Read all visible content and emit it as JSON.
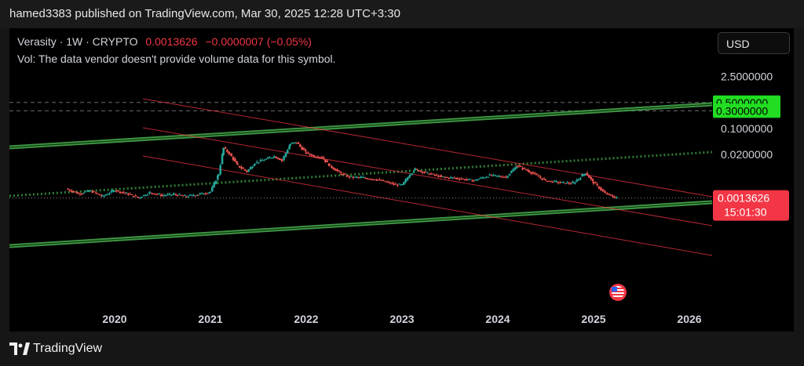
{
  "header": {
    "published": "hamed3383 published on TradingView.com, Mar 30, 2025 12:28 UTC+3:30"
  },
  "legend": {
    "symbol": "Verasity · 1W · CRYPTO",
    "price": "0.0013626",
    "change": "−0.0000007 (−0.05%)",
    "volume_note": "Vol: The data vendor doesn't provide volume data for this symbol."
  },
  "currency_button": "USD",
  "price_tag": {
    "value": "0.0013626",
    "countdown": "15:01:30"
  },
  "footer": {
    "brand": "TradingView"
  },
  "colors": {
    "up": "#26a69a",
    "down": "#ef5350",
    "green_line": "#4caf50",
    "red_line": "#f23645",
    "badge_green": "#22dd22"
  },
  "chart_data": {
    "type": "line",
    "scale": "log",
    "x_ticks": [
      "2020",
      "2021",
      "2022",
      "2023",
      "2024",
      "2025",
      "2026"
    ],
    "y_ticks": [
      "2.5000000",
      "0.5000000",
      "0.3000000",
      "0.1000000",
      "0.0200000"
    ],
    "highlighted_levels": [
      "0.5000000",
      "0.3000000"
    ],
    "last_price": 0.0013626,
    "series": [
      {
        "values": [
          [
            "2019-06-30",
            0.0024
          ],
          [
            "2019-08-15",
            0.0018
          ],
          [
            "2019-10-01",
            0.0021
          ],
          [
            "2019-11-15",
            0.0015
          ],
          [
            "2020-01-01",
            0.0022
          ],
          [
            "2020-02-15",
            0.0018
          ],
          [
            "2020-04-01",
            0.0014
          ],
          [
            "2020-05-15",
            0.0019
          ],
          [
            "2020-07-01",
            0.0016
          ],
          [
            "2020-08-15",
            0.0017
          ],
          [
            "2020-10-01",
            0.0015
          ],
          [
            "2020-11-15",
            0.0017
          ],
          [
            "2021-01-01",
            0.002
          ],
          [
            "2021-02-01",
            0.006
          ],
          [
            "2021-02-20",
            0.03
          ],
          [
            "2021-03-15",
            0.021
          ],
          [
            "2021-04-15",
            0.01
          ],
          [
            "2021-05-20",
            0.007
          ],
          [
            "2021-06-20",
            0.012
          ],
          [
            "2021-08-01",
            0.015
          ],
          [
            "2021-09-01",
            0.018
          ],
          [
            "2021-10-01",
            0.014
          ],
          [
            "2021-11-01",
            0.038
          ],
          [
            "2021-11-25",
            0.042
          ],
          [
            "2022-01-01",
            0.022
          ],
          [
            "2022-02-01",
            0.018
          ],
          [
            "2022-03-01",
            0.017
          ],
          [
            "2022-04-01",
            0.01
          ],
          [
            "2022-05-15",
            0.006
          ],
          [
            "2022-06-15",
            0.005
          ],
          [
            "2022-08-01",
            0.0048
          ],
          [
            "2022-10-01",
            0.0042
          ],
          [
            "2022-12-01",
            0.0032
          ],
          [
            "2023-01-01",
            0.003
          ],
          [
            "2023-02-01",
            0.006
          ],
          [
            "2023-02-20",
            0.008
          ],
          [
            "2023-04-01",
            0.0065
          ],
          [
            "2023-06-01",
            0.005
          ],
          [
            "2023-08-01",
            0.0046
          ],
          [
            "2023-10-01",
            0.004
          ],
          [
            "2023-12-01",
            0.0055
          ],
          [
            "2024-02-01",
            0.005
          ],
          [
            "2024-03-15",
            0.01
          ],
          [
            "2024-05-01",
            0.007
          ],
          [
            "2024-07-01",
            0.004
          ],
          [
            "2024-09-01",
            0.0035
          ],
          [
            "2024-10-15",
            0.0034
          ],
          [
            "2024-12-01",
            0.0065
          ],
          [
            "2025-01-01",
            0.0035
          ],
          [
            "2025-02-15",
            0.0018
          ],
          [
            "2025-03-30",
            0.0013626
          ]
        ]
      }
    ]
  }
}
